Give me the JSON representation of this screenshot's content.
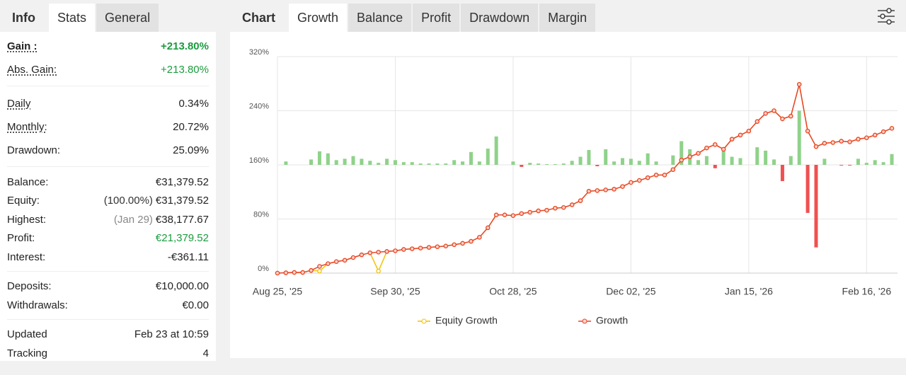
{
  "left_tabs": [
    "Info",
    "Stats",
    "General"
  ],
  "stats": [
    [
      {
        "label": "Gain :",
        "value": "+213.80%",
        "color": "#1a9c3e"
      },
      {
        "label": "Abs. Gain:",
        "value": "+213.80%",
        "color": "#1a9c3e"
      }
    ],
    [
      {
        "label": "Daily",
        "value": "0.34%"
      },
      {
        "label": "Monthly:",
        "value": "20.72%"
      },
      {
        "label": "Drawdown:",
        "value": "25.09%"
      }
    ],
    [
      {
        "label": "Balance:",
        "value": "€31,379.52"
      },
      {
        "label": "Equity:",
        "note": "(100.00%)",
        "value": "€31,379.52"
      },
      {
        "label": "Highest:",
        "note": "(Jan 29)",
        "value": "€38,177.67"
      },
      {
        "label": "Profit:",
        "value": "€21,379.52",
        "color": "#1a9c3e"
      },
      {
        "label": "Interest:",
        "value": "-€361.11"
      }
    ],
    [
      {
        "label": "Deposits:",
        "value": "€10,000.00"
      },
      {
        "label": "Withdrawals:",
        "value": "€0.00"
      }
    ],
    [
      {
        "label": "Updated",
        "value": "Feb 23 at 10:59"
      },
      {
        "label": "Tracking",
        "value": "4"
      }
    ]
  ],
  "chart_tabs": [
    "Chart",
    "Growth",
    "Balance",
    "Profit",
    "Drawdown",
    "Margin"
  ],
  "chart_data": {
    "type": "line",
    "categories": [
      "Aug 25, '25",
      null,
      null,
      null,
      null,
      null,
      null,
      null,
      null,
      null,
      null,
      null,
      null,
      null,
      "Sep 30, '25",
      null,
      null,
      null,
      null,
      null,
      null,
      null,
      null,
      null,
      null,
      null,
      null,
      null,
      "Oct 28, '25",
      null,
      null,
      null,
      null,
      null,
      null,
      null,
      null,
      null,
      null,
      null,
      null,
      null,
      "Dec 02, '25",
      null,
      null,
      null,
      null,
      null,
      null,
      null,
      null,
      null,
      null,
      null,
      null,
      null,
      "Jan 15, '26",
      null,
      null,
      null,
      null,
      null,
      null,
      null,
      null,
      null,
      null,
      null,
      null,
      null,
      "Feb 16, '26",
      null,
      null,
      null
    ],
    "ylim": [
      0,
      320
    ],
    "yticks": [
      {
        "value": 0,
        "label": "0%"
      },
      {
        "value": 80,
        "label": "80%"
      },
      {
        "value": 160,
        "label": "160%"
      },
      {
        "value": 240,
        "label": "240%"
      },
      {
        "value": 320,
        "label": "320%"
      }
    ],
    "y2lim": [
      -160,
      160
    ],
    "grid": true,
    "series": [
      {
        "name": "Equity Growth",
        "color": "#f2c200",
        "values": [
          0,
          0.5,
          1,
          1,
          4,
          3,
          14,
          17,
          19,
          23,
          27,
          30,
          3,
          32,
          33,
          35,
          36,
          37,
          38,
          39,
          40,
          42,
          44,
          47,
          53,
          67,
          86,
          86,
          85,
          88,
          90,
          92,
          93,
          96,
          97,
          101,
          107,
          121,
          122,
          123,
          124,
          128,
          134,
          137,
          141,
          145,
          145,
          153,
          167,
          172,
          177,
          185,
          190,
          183,
          198,
          204,
          210,
          224,
          236,
          240,
          228,
          232,
          279,
          210,
          187,
          192,
          193,
          195,
          194,
          198,
          200,
          204,
          209,
          214
        ]
      },
      {
        "name": "Growth",
        "color": "#e8442c",
        "values": [
          0,
          0.5,
          1,
          1,
          4,
          10,
          14,
          17,
          19,
          23,
          27,
          30,
          31,
          32,
          33,
          35,
          36,
          37,
          38,
          39,
          40,
          42,
          44,
          47,
          53,
          67,
          86,
          86,
          85,
          88,
          90,
          92,
          93,
          96,
          97,
          101,
          107,
          121,
          122,
          123,
          124,
          128,
          134,
          137,
          141,
          145,
          145,
          153,
          167,
          172,
          177,
          185,
          190,
          183,
          198,
          204,
          210,
          224,
          236,
          240,
          228,
          232,
          279,
          210,
          187,
          192,
          193,
          195,
          194,
          198,
          200,
          204,
          209,
          214
        ]
      },
      {
        "type": "bar",
        "axis": "y2",
        "color": "#8fd28a",
        "negative_color": "#f05050",
        "values": [
          0,
          5,
          0,
          0,
          8,
          20,
          17,
          7,
          9,
          13,
          9,
          6,
          3,
          9,
          7,
          4,
          4,
          2,
          2,
          2,
          2,
          7,
          5,
          19,
          5,
          24,
          42,
          0,
          5,
          -3,
          3,
          2,
          1,
          1,
          2,
          6,
          12,
          22,
          -2,
          23,
          5,
          10,
          9,
          6,
          17,
          5,
          0,
          14,
          35,
          23,
          7,
          13,
          -5,
          24,
          12,
          10,
          0,
          26,
          21,
          8,
          -24,
          13,
          80,
          -71,
          -122,
          9,
          0,
          -1,
          -1,
          9,
          3,
          7,
          4,
          16
        ]
      }
    ]
  }
}
